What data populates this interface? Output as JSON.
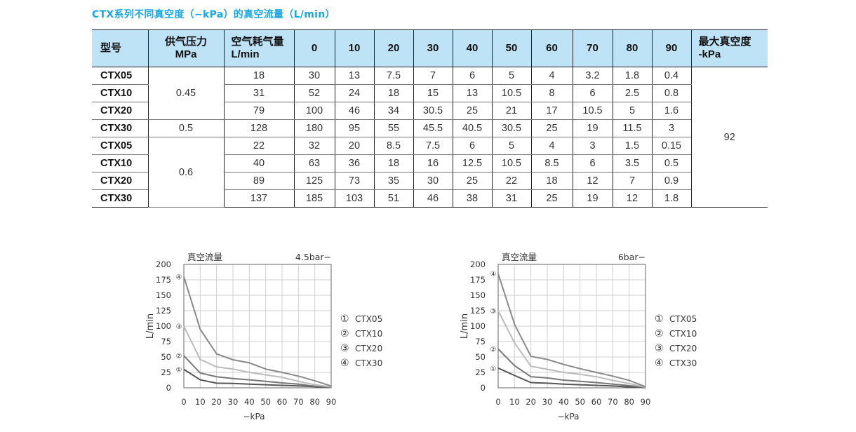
{
  "title": "CTX系列不同真空度（−kPa）的真空流量（L/min）",
  "table": {
    "headers": [
      "型号",
      "供气压力 MPa",
      "空气耗气量 L/min",
      "0",
      "10",
      "20",
      "30",
      "40",
      "50",
      "60",
      "70",
      "80",
      "90",
      "最大真空度 -kPa"
    ],
    "header_lines": {
      "supply": [
        "供气压力",
        "MPa"
      ],
      "air": [
        "空气耗气量",
        "L/min"
      ],
      "maxvac": [
        "最大真空度",
        "-kPa"
      ]
    },
    "pressure_groups": [
      "0.45",
      "0.5",
      "0.6"
    ],
    "max_vacuum": "92",
    "rows": [
      {
        "model": "CTX05",
        "air": "18",
        "flows": [
          "30",
          "13",
          "7.5",
          "7",
          "6",
          "5",
          "4",
          "3.2",
          "1.8",
          "0.4"
        ]
      },
      {
        "model": "CTX10",
        "air": "31",
        "flows": [
          "52",
          "24",
          "18",
          "15",
          "13",
          "10.5",
          "8",
          "6",
          "2.5",
          "0.8"
        ]
      },
      {
        "model": "CTX20",
        "air": "79",
        "flows": [
          "100",
          "46",
          "34",
          "30.5",
          "25",
          "21",
          "17",
          "10.5",
          "5",
          "1.6"
        ]
      },
      {
        "model": "CTX30",
        "air": "128",
        "flows": [
          "180",
          "95",
          "55",
          "45.5",
          "40.5",
          "30.5",
          "25",
          "19",
          "11.5",
          "3"
        ]
      },
      {
        "model": "CTX05",
        "air": "22",
        "flows": [
          "32",
          "20",
          "8.5",
          "7.5",
          "6",
          "5",
          "4",
          "3",
          "1.5",
          "0.15"
        ]
      },
      {
        "model": "CTX10",
        "air": "40",
        "flows": [
          "63",
          "36",
          "18",
          "16",
          "12.5",
          "10.5",
          "8.5",
          "6",
          "3.5",
          "0.5"
        ]
      },
      {
        "model": "CTX20",
        "air": "89",
        "flows": [
          "125",
          "73",
          "35",
          "30",
          "25",
          "22",
          "18",
          "12",
          "7",
          "0.9"
        ]
      },
      {
        "model": "CTX30",
        "air": "137",
        "flows": [
          "185",
          "103",
          "51",
          "46",
          "38",
          "31",
          "25",
          "19",
          "12",
          "1.8"
        ]
      }
    ]
  },
  "chart_data": [
    {
      "type": "line",
      "title": "真空流量",
      "subtitle": "4.5bar−",
      "xlabel": "−kPa",
      "ylabel": "L/min",
      "x": [
        0,
        10,
        20,
        30,
        40,
        50,
        60,
        70,
        80,
        90
      ],
      "xticks": [
        "0",
        "10",
        "20",
        "30",
        "40",
        "50",
        "60",
        "70",
        "80",
        "90"
      ],
      "yticks": [
        "0",
        "25",
        "50",
        "75",
        "100",
        "125",
        "150",
        "175",
        "200"
      ],
      "ylim": [
        0,
        200
      ],
      "grid": true,
      "legend_position": "right",
      "series": [
        {
          "marker": "①",
          "name": "CTX05",
          "color": "#555555",
          "values": [
            30,
            13,
            7.5,
            7,
            6,
            5,
            4,
            3.2,
            1.8,
            0.4
          ]
        },
        {
          "marker": "②",
          "name": "CTX10",
          "color": "#777777",
          "values": [
            52,
            24,
            18,
            15,
            13,
            10.5,
            8,
            6,
            2.5,
            0.8
          ]
        },
        {
          "marker": "③",
          "name": "CTX20",
          "color": "#bbbbbb",
          "values": [
            100,
            46,
            34,
            30.5,
            25,
            21,
            17,
            10.5,
            5,
            1.6
          ]
        },
        {
          "marker": "④",
          "name": "CTX30",
          "color": "#8a8a8a",
          "values": [
            180,
            95,
            55,
            45.5,
            40.5,
            30.5,
            25,
            19,
            11.5,
            3
          ]
        }
      ]
    },
    {
      "type": "line",
      "title": "真空流量",
      "subtitle": "6bar−",
      "xlabel": "−kPa",
      "ylabel": "L/min",
      "x": [
        0,
        10,
        20,
        30,
        40,
        50,
        60,
        70,
        80,
        90
      ],
      "xticks": [
        "0",
        "10",
        "20",
        "30",
        "40",
        "50",
        "60",
        "70",
        "80",
        "90"
      ],
      "yticks": [
        "0",
        "25",
        "50",
        "75",
        "100",
        "125",
        "150",
        "175",
        "200"
      ],
      "ylim": [
        0,
        200
      ],
      "grid": true,
      "legend_position": "right",
      "series": [
        {
          "marker": "①",
          "name": "CTX05",
          "color": "#555555",
          "values": [
            32,
            20,
            8.5,
            7.5,
            6,
            5,
            4,
            3,
            1.5,
            0.15
          ]
        },
        {
          "marker": "②",
          "name": "CTX10",
          "color": "#777777",
          "values": [
            63,
            36,
            18,
            16,
            12.5,
            10.5,
            8.5,
            6,
            3.5,
            0.5
          ]
        },
        {
          "marker": "③",
          "name": "CTX20",
          "color": "#bbbbbb",
          "values": [
            125,
            73,
            35,
            30,
            25,
            22,
            18,
            12,
            7,
            0.9
          ]
        },
        {
          "marker": "④",
          "name": "CTX30",
          "color": "#8a8a8a",
          "values": [
            185,
            103,
            51,
            46,
            38,
            31,
            25,
            19,
            12,
            1.8
          ]
        }
      ]
    }
  ]
}
